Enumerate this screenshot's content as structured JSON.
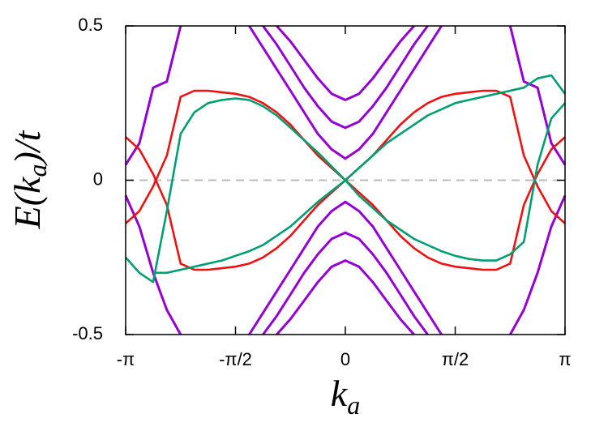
{
  "chart_data": {
    "type": "line",
    "xlabel": [
      "k",
      "a"
    ],
    "ylabel": [
      "E(k",
      "a",
      ")/t"
    ],
    "xlim": [
      -3.1416,
      3.1416
    ],
    "xticks": [
      {
        "value": -3.1416,
        "label": "-π"
      },
      {
        "value": -1.5708,
        "label": "-π/2"
      },
      0,
      {
        "value": 1.5708,
        "label": "π/2"
      },
      {
        "value": 3.1416,
        "label": "π"
      }
    ],
    "ylim": [
      -0.5,
      0.5
    ],
    "yticks": [
      -0.5,
      0,
      0.5
    ],
    "zeroline": true,
    "x": [
      -3.1416,
      -2.9452,
      -2.7489,
      -2.5525,
      -2.3562,
      -2.1598,
      -1.9635,
      -1.7671,
      -1.5708,
      -1.3744,
      -1.1781,
      -0.9817,
      -0.7854,
      -0.589,
      -0.3927,
      -0.1963,
      0,
      0.1963,
      0.3927,
      0.589,
      0.7854,
      0.9817,
      1.1781,
      1.3744,
      1.5708,
      1.7671,
      1.9635,
      2.1598,
      2.3562,
      2.5525,
      2.7489,
      2.9452,
      3.1416
    ],
    "series": [
      {
        "color": "#9400d3",
        "values": [
          0.05,
          0.12,
          0.3,
          0.32,
          0.5,
          null,
          null,
          null,
          null,
          null,
          null,
          null,
          null,
          null,
          null,
          null,
          null,
          null,
          null,
          null,
          null,
          null,
          null,
          null,
          null,
          null,
          null,
          null,
          null,
          null,
          null,
          null,
          null
        ]
      },
      {
        "color": "#9400d3",
        "values": [
          -0.05,
          -0.15,
          -0.3,
          -0.42,
          -0.5,
          null,
          null,
          null,
          null,
          null,
          null,
          null,
          null,
          null,
          null,
          null,
          null,
          null,
          null,
          null,
          null,
          null,
          null,
          null,
          null,
          null,
          null,
          null,
          null,
          null,
          null,
          null,
          null
        ]
      },
      {
        "color": "#9400d3",
        "values": [
          null,
          null,
          null,
          null,
          null,
          null,
          null,
          null,
          null,
          null,
          null,
          null,
          null,
          null,
          null,
          null,
          null,
          null,
          null,
          null,
          null,
          null,
          null,
          null,
          null,
          null,
          null,
          null,
          0.5,
          0.32,
          0.3,
          0.12,
          0.05
        ]
      },
      {
        "color": "#9400d3",
        "values": [
          null,
          null,
          null,
          null,
          null,
          null,
          null,
          null,
          null,
          null,
          null,
          null,
          null,
          null,
          null,
          null,
          null,
          null,
          null,
          null,
          null,
          null,
          null,
          null,
          null,
          null,
          null,
          null,
          -0.5,
          -0.42,
          -0.3,
          -0.15,
          -0.05
        ]
      },
      {
        "color": "#9400d3",
        "values": [
          null,
          null,
          null,
          null,
          null,
          null,
          null,
          null,
          null,
          0.5,
          0.43,
          0.36,
          0.29,
          0.22,
          0.15,
          0.1,
          0.07,
          0.1,
          0.15,
          0.22,
          0.29,
          0.36,
          0.43,
          0.5,
          null,
          null,
          null,
          null,
          null,
          null,
          null,
          null,
          null
        ]
      },
      {
        "color": "#9400d3",
        "values": [
          null,
          null,
          null,
          null,
          null,
          null,
          null,
          null,
          null,
          null,
          0.5,
          0.44,
          0.37,
          0.3,
          0.24,
          0.19,
          0.17,
          0.19,
          0.24,
          0.3,
          0.37,
          0.44,
          0.5,
          null,
          null,
          null,
          null,
          null,
          null,
          null,
          null,
          null,
          null
        ]
      },
      {
        "color": "#9400d3",
        "values": [
          null,
          null,
          null,
          null,
          null,
          null,
          null,
          null,
          null,
          null,
          null,
          0.5,
          0.45,
          0.39,
          0.33,
          0.28,
          0.26,
          0.28,
          0.33,
          0.39,
          0.45,
          0.5,
          null,
          null,
          null,
          null,
          null,
          null,
          null,
          null,
          null,
          null,
          null
        ]
      },
      {
        "color": "#9400d3",
        "values": [
          null,
          null,
          null,
          null,
          null,
          null,
          null,
          null,
          null,
          -0.5,
          -0.43,
          -0.36,
          -0.29,
          -0.22,
          -0.15,
          -0.1,
          -0.07,
          -0.1,
          -0.15,
          -0.22,
          -0.29,
          -0.36,
          -0.43,
          -0.5,
          null,
          null,
          null,
          null,
          null,
          null,
          null,
          null,
          null
        ]
      },
      {
        "color": "#9400d3",
        "values": [
          null,
          null,
          null,
          null,
          null,
          null,
          null,
          null,
          null,
          null,
          -0.5,
          -0.44,
          -0.37,
          -0.3,
          -0.24,
          -0.19,
          -0.17,
          -0.19,
          -0.24,
          -0.3,
          -0.37,
          -0.44,
          -0.5,
          null,
          null,
          null,
          null,
          null,
          null,
          null,
          null,
          null,
          null
        ]
      },
      {
        "color": "#9400d3",
        "values": [
          null,
          null,
          null,
          null,
          null,
          null,
          null,
          null,
          null,
          null,
          null,
          -0.5,
          -0.45,
          -0.39,
          -0.33,
          -0.28,
          -0.26,
          -0.28,
          -0.33,
          -0.39,
          -0.45,
          -0.5,
          null,
          null,
          null,
          null,
          null,
          null,
          null,
          null,
          null,
          null,
          null
        ]
      },
      {
        "color": "#ee1111",
        "values": [
          -0.14,
          -0.1,
          -0.02,
          0.08,
          0.27,
          0.29,
          0.29,
          0.285,
          0.28,
          0.27,
          0.25,
          0.22,
          0.18,
          0.13,
          0.08,
          0.04,
          0,
          -0.04,
          -0.08,
          -0.13,
          -0.18,
          -0.22,
          -0.25,
          -0.27,
          -0.28,
          -0.285,
          -0.29,
          -0.29,
          -0.27,
          -0.08,
          0.02,
          0.1,
          0.14
        ]
      },
      {
        "color": "#ee1111",
        "values": [
          0.14,
          0.1,
          0.02,
          -0.08,
          -0.27,
          -0.29,
          -0.29,
          -0.285,
          -0.28,
          -0.27,
          -0.25,
          -0.22,
          -0.18,
          -0.13,
          -0.08,
          -0.04,
          0,
          0.04,
          0.08,
          0.13,
          0.18,
          0.22,
          0.25,
          0.27,
          0.28,
          0.285,
          0.29,
          0.29,
          0.27,
          0.08,
          -0.02,
          -0.1,
          -0.14
        ]
      },
      {
        "color": "#009e73",
        "values": [
          -0.25,
          -0.3,
          -0.33,
          -0.1,
          0.15,
          0.22,
          0.25,
          0.26,
          0.265,
          0.26,
          0.24,
          0.21,
          0.17,
          0.13,
          0.09,
          0.045,
          0,
          -0.05,
          -0.09,
          -0.13,
          -0.16,
          -0.19,
          -0.21,
          -0.23,
          -0.245,
          -0.255,
          -0.26,
          -0.26,
          -0.24,
          -0.2,
          0.05,
          0.2,
          0.25
        ]
      },
      {
        "color": "#009e73",
        "values": [
          null,
          null,
          -0.3,
          -0.3,
          -0.29,
          -0.28,
          -0.27,
          -0.26,
          -0.245,
          -0.23,
          -0.21,
          -0.18,
          -0.15,
          -0.11,
          -0.07,
          -0.035,
          0,
          0.04,
          0.08,
          0.12,
          0.15,
          0.18,
          0.21,
          0.23,
          0.25,
          0.26,
          0.27,
          0.28,
          0.29,
          0.3,
          0.33,
          0.34,
          0.28
        ]
      }
    ]
  }
}
